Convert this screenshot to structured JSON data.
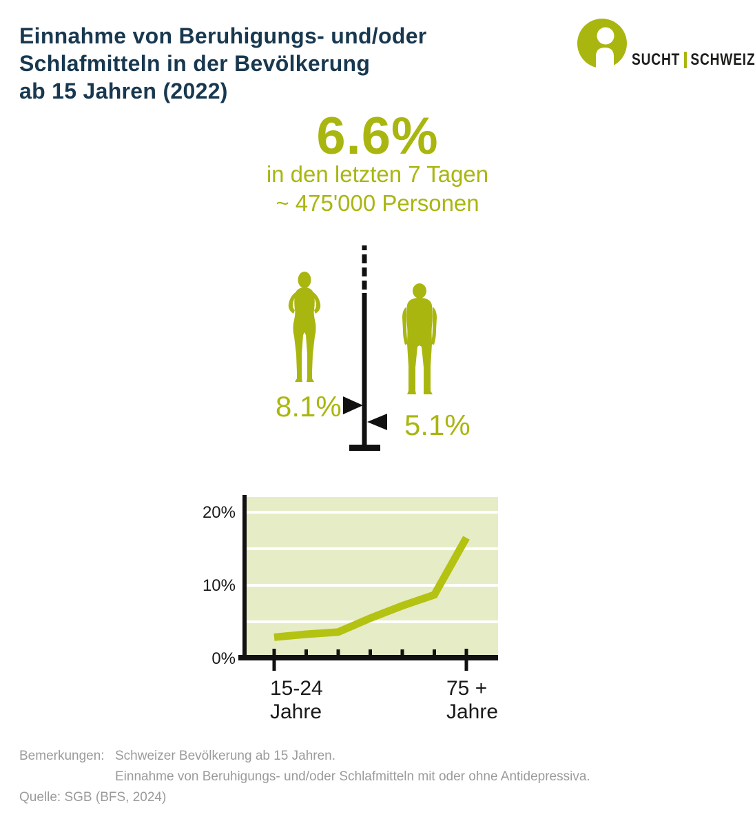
{
  "header": {
    "title": "Einnahme von Beruhigungs- und/oder\nSchlafmitteln in der Bevölkerung\nab 15 Jahren (2022)",
    "logo": {
      "word_left": "SUCHT",
      "word_right": "SCHWEIZ",
      "icon": "person-in-circle"
    }
  },
  "highlight": {
    "value": "6.6%",
    "subtitle": "in den letzten 7 Tagen",
    "approx": "~ 475'000 Personen"
  },
  "gender": {
    "female_value": "8.1%",
    "male_value": "5.1%"
  },
  "chart_data": {
    "type": "line",
    "title": "",
    "x_tick_count": 7,
    "x_categories_labeled": [
      "15-24\nJahre",
      "75 +\nJahre"
    ],
    "values": [
      2.9,
      3.3,
      3.6,
      5.5,
      7.2,
      8.7,
      16.5
    ],
    "y_tick_labels": [
      "0%",
      "10%",
      "20%"
    ],
    "ylim": [
      0,
      22
    ],
    "gridlines_pct": [
      5,
      10,
      15,
      20
    ],
    "grid": "on",
    "legend": "none",
    "line_color": "#b4c211",
    "plot_bg_color": "#e6ecc5"
  },
  "footer": {
    "notes_label": "Bemerkungen:",
    "notes": [
      "Schweizer Bevölkerung ab 15 Jahren.",
      "Einnahme von Beruhigungs- und/oder Schlafmitteln mit oder ohne Antidepressiva."
    ],
    "source": "Quelle: SGB (BFS, 2024)"
  },
  "colors": {
    "brand_green": "#a9b60f",
    "title_navy": "#183850",
    "note_gray": "#9b9b9b",
    "chart_line": "#b4c211",
    "plot_bg": "#e6ecc5"
  }
}
